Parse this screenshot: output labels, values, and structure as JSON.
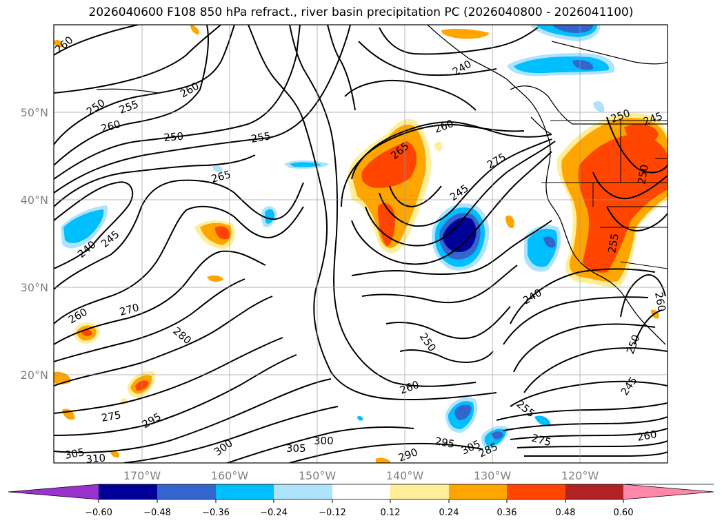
{
  "title": "2026040600 F108 850 hPa refract., river basin precipitation PC (2026040800 - 2026041100)",
  "map": {
    "lat_labels": [
      "50°N",
      "40°N",
      "30°N",
      "20°N"
    ],
    "lon_labels": [
      "170°W",
      "160°W",
      "150°W",
      "140°W",
      "130°W",
      "120°W"
    ],
    "contour_labels": [
      "260",
      "250",
      "255",
      "260",
      "250",
      "255",
      "260",
      "265",
      "240",
      "245",
      "260",
      "270",
      "280",
      "275",
      "295",
      "305",
      "310",
      "300",
      "305",
      "300",
      "290",
      "295",
      "305",
      "285",
      "275",
      "260",
      "255",
      "260",
      "250",
      "245",
      "275",
      "240",
      "245",
      "250",
      "260",
      "265",
      "250",
      "255",
      "260",
      "250",
      "240",
      "245"
    ]
  },
  "colorbar": {
    "ticks": [
      "−0.60",
      "−0.48",
      "−0.36",
      "−0.24",
      "−0.12",
      "0.12",
      "0.24",
      "0.36",
      "0.48",
      "0.60"
    ],
    "colors": [
      "#9933cc",
      "#000099",
      "#3366cc",
      "#00bfff",
      "#aee3fb",
      "#ffffff",
      "#ffee99",
      "#ffa500",
      "#ff4500",
      "#b22222",
      "#ff88aa"
    ]
  }
}
